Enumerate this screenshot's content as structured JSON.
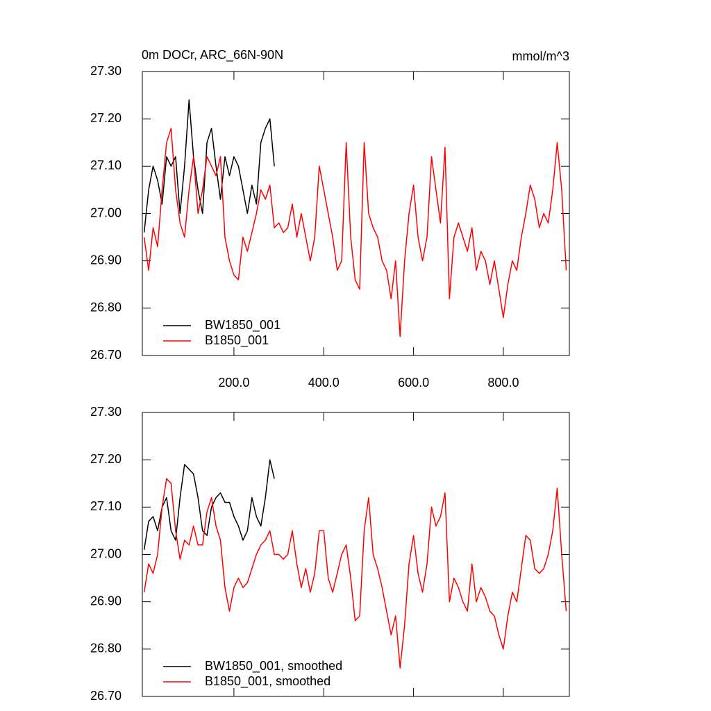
{
  "chart_data": [
    {
      "type": "line",
      "title": "0m DOCr, ARC_66N-90N",
      "units": "mmol/m^3",
      "xlim": [
        -4,
        947
      ],
      "xticks": [
        {
          "value": 200,
          "label": "200.0"
        },
        {
          "value": 400,
          "label": "400.0"
        },
        {
          "value": 600,
          "label": "600.0"
        },
        {
          "value": 800,
          "label": "800.0"
        }
      ],
      "ylim": [
        26.7,
        27.3
      ],
      "yticks": [
        {
          "value": 26.7,
          "label": "26.70"
        },
        {
          "value": 26.8,
          "label": "26.80"
        },
        {
          "value": 26.9,
          "label": "26.90"
        },
        {
          "value": 27.0,
          "label": "27.00"
        },
        {
          "value": 27.1,
          "label": "27.10"
        },
        {
          "value": 27.2,
          "label": "27.20"
        },
        {
          "value": 27.3,
          "label": "27.30"
        }
      ],
      "legend": "lower left",
      "x": [
        0,
        10,
        20,
        30,
        40,
        50,
        60,
        70,
        80,
        90,
        100,
        110,
        120,
        130,
        140,
        150,
        160,
        170,
        180,
        190,
        200,
        210,
        220,
        230,
        240,
        250,
        260,
        270,
        280,
        290,
        300,
        310,
        320,
        330,
        340,
        350,
        360,
        370,
        380,
        390,
        400,
        410,
        420,
        430,
        440,
        450,
        460,
        470,
        480,
        490,
        500,
        510,
        520,
        530,
        540,
        550,
        560,
        570,
        580,
        590,
        600,
        610,
        620,
        630,
        640,
        650,
        660,
        670,
        680,
        690,
        700,
        710,
        720,
        730,
        740,
        750,
        760,
        770,
        780,
        790,
        800,
        810,
        820,
        830,
        840,
        850,
        860,
        870,
        880,
        890,
        900,
        910,
        920,
        930,
        940
      ],
      "series": [
        {
          "name": "BW1850_001",
          "color": "#000000",
          "values": [
            26.96,
            27.05,
            27.1,
            27.07,
            27.02,
            27.12,
            27.1,
            27.12,
            27.0,
            27.1,
            27.24,
            27.12,
            27.05,
            27.0,
            27.15,
            27.18,
            27.1,
            27.03,
            27.12,
            27.08,
            27.12,
            27.1,
            27.05,
            27.0,
            27.06,
            27.02,
            27.15,
            27.18,
            27.2,
            27.1,
            null,
            null,
            null,
            null,
            null,
            null,
            null,
            null,
            null,
            null,
            null,
            null,
            null,
            null,
            null,
            null,
            null,
            null,
            null,
            null,
            null,
            null,
            null,
            null,
            null,
            null,
            null,
            null,
            null,
            null,
            null,
            null,
            null,
            null,
            null,
            null,
            null,
            null,
            null,
            null,
            null,
            null,
            null,
            null,
            null,
            null,
            null,
            null,
            null,
            null,
            null,
            null,
            null,
            null,
            null,
            null,
            null,
            null,
            null,
            null,
            null,
            null,
            null,
            null,
            null
          ]
        },
        {
          "name": "B1850_001",
          "color": "#ff0000",
          "values": [
            26.95,
            26.88,
            26.97,
            26.93,
            27.05,
            27.15,
            27.18,
            27.05,
            26.98,
            26.95,
            27.05,
            27.12,
            27.0,
            27.05,
            27.12,
            27.1,
            27.08,
            27.12,
            26.95,
            26.9,
            26.87,
            26.86,
            26.95,
            26.92,
            26.96,
            27.0,
            27.05,
            27.03,
            27.06,
            26.97,
            26.98,
            26.96,
            26.97,
            27.02,
            26.95,
            27.0,
            26.95,
            26.9,
            26.95,
            27.1,
            27.05,
            27.0,
            26.95,
            26.88,
            26.9,
            27.15,
            26.95,
            26.86,
            26.84,
            27.15,
            27.0,
            26.97,
            26.95,
            26.9,
            26.88,
            26.82,
            26.9,
            26.74,
            26.9,
            27.0,
            27.06,
            26.95,
            26.9,
            26.95,
            27.12,
            27.05,
            26.98,
            27.14,
            26.82,
            26.95,
            26.98,
            26.95,
            26.92,
            26.97,
            26.88,
            26.92,
            26.9,
            26.85,
            26.9,
            26.84,
            26.78,
            26.85,
            26.9,
            26.88,
            26.95,
            27.0,
            27.06,
            27.03,
            26.97,
            27.0,
            26.98,
            27.05,
            27.15,
            27.05,
            26.88
          ]
        }
      ]
    },
    {
      "type": "line",
      "xlim": [
        -4,
        947
      ],
      "xticks": [
        200,
        400,
        600,
        800
      ],
      "ylim": [
        26.7,
        27.3
      ],
      "yticks": [
        {
          "value": 26.7,
          "label": "26.70"
        },
        {
          "value": 26.8,
          "label": "26.80"
        },
        {
          "value": 26.9,
          "label": "26.90"
        },
        {
          "value": 27.0,
          "label": "27.00"
        },
        {
          "value": 27.1,
          "label": "27.10"
        },
        {
          "value": 27.2,
          "label": "27.20"
        },
        {
          "value": 27.3,
          "label": "27.30"
        }
      ],
      "legend": "lower left",
      "x": [
        0,
        10,
        20,
        30,
        40,
        50,
        60,
        70,
        80,
        90,
        100,
        110,
        120,
        130,
        140,
        150,
        160,
        170,
        180,
        190,
        200,
        210,
        220,
        230,
        240,
        250,
        260,
        270,
        280,
        290,
        300,
        310,
        320,
        330,
        340,
        350,
        360,
        370,
        380,
        390,
        400,
        410,
        420,
        430,
        440,
        450,
        460,
        470,
        480,
        490,
        500,
        510,
        520,
        530,
        540,
        550,
        560,
        570,
        580,
        590,
        600,
        610,
        620,
        630,
        640,
        650,
        660,
        670,
        680,
        690,
        700,
        710,
        720,
        730,
        740,
        750,
        760,
        770,
        780,
        790,
        800,
        810,
        820,
        830,
        840,
        850,
        860,
        870,
        880,
        890,
        900,
        910,
        920,
        930,
        940
      ],
      "series": [
        {
          "name": "BW1850_001, smoothed",
          "color": "#000000",
          "values": [
            27.01,
            27.07,
            27.08,
            27.05,
            27.1,
            27.12,
            27.05,
            27.03,
            27.12,
            27.19,
            27.18,
            27.17,
            27.12,
            27.05,
            27.04,
            27.1,
            27.12,
            27.13,
            27.11,
            27.11,
            27.08,
            27.06,
            27.03,
            27.05,
            27.12,
            27.08,
            27.06,
            27.12,
            27.2,
            27.16,
            null,
            null,
            null,
            null,
            null,
            null,
            null,
            null,
            null,
            null,
            null,
            null,
            null,
            null,
            null,
            null,
            null,
            null,
            null,
            null,
            null,
            null,
            null,
            null,
            null,
            null,
            null,
            null,
            null,
            null,
            null,
            null,
            null,
            null,
            null,
            null,
            null,
            null,
            null,
            null,
            null,
            null,
            null,
            null,
            null,
            null,
            null,
            null,
            null,
            null,
            null,
            null,
            null,
            null,
            null,
            null,
            null,
            null,
            null,
            null,
            null,
            null,
            null,
            null,
            null
          ]
        },
        {
          "name": "B1850_001, smoothed",
          "color": "#ff0000",
          "values": [
            26.92,
            26.98,
            26.96,
            27.0,
            27.1,
            27.16,
            27.15,
            27.05,
            26.99,
            27.03,
            27.02,
            27.06,
            27.02,
            27.02,
            27.09,
            27.12,
            27.06,
            27.03,
            26.93,
            26.88,
            26.93,
            26.95,
            26.93,
            26.94,
            26.97,
            27.0,
            27.02,
            27.03,
            27.05,
            27.0,
            27.0,
            26.99,
            27.0,
            27.05,
            26.98,
            26.93,
            26.97,
            26.92,
            26.96,
            27.05,
            27.05,
            26.95,
            26.92,
            26.96,
            27.0,
            27.02,
            26.95,
            26.86,
            26.87,
            27.05,
            27.12,
            27.0,
            26.97,
            26.93,
            26.88,
            26.83,
            26.87,
            26.76,
            26.85,
            26.98,
            27.04,
            26.96,
            26.92,
            26.98,
            27.1,
            27.06,
            27.08,
            27.13,
            26.9,
            26.95,
            26.93,
            26.9,
            26.88,
            26.98,
            26.9,
            26.93,
            26.91,
            26.88,
            26.87,
            26.83,
            26.8,
            26.87,
            26.92,
            26.9,
            26.97,
            27.04,
            27.03,
            26.97,
            26.96,
            26.97,
            27.0,
            27.05,
            27.14,
            27.0,
            26.88
          ]
        }
      ]
    }
  ]
}
